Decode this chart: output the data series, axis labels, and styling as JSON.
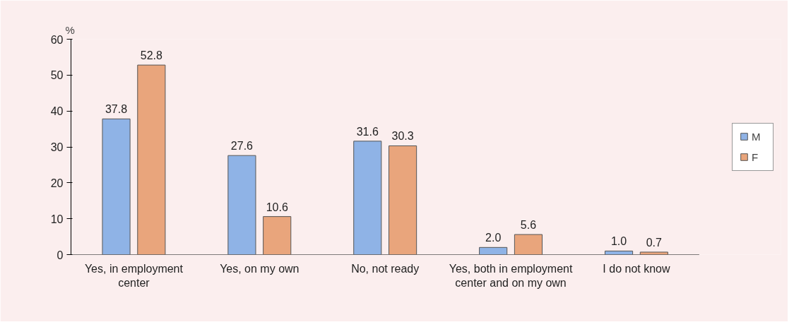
{
  "chart_data": {
    "type": "bar",
    "ylabel": "%",
    "categories": [
      "Yes, in employment center",
      "Yes, on my own",
      "No, not ready",
      "Yes, both in employment center and on my own",
      "I do not know"
    ],
    "series": [
      {
        "name": "M",
        "color": "#8fb3e6",
        "values": [
          37.8,
          27.6,
          31.6,
          2.0,
          1.0
        ],
        "value_labels": [
          "37.8",
          "27.6",
          "31.6",
          "2.0",
          "1.0"
        ]
      },
      {
        "name": "F",
        "color": "#e9a57c",
        "values": [
          52.8,
          10.6,
          30.3,
          5.6,
          0.7
        ],
        "value_labels": [
          "52.8",
          "10.6",
          "30.3",
          "5.6",
          "0.7"
        ]
      }
    ],
    "ylim": [
      0,
      60
    ],
    "yticks": [
      0,
      10,
      20,
      30,
      40,
      50,
      60
    ],
    "grid": false,
    "legend": "right"
  }
}
